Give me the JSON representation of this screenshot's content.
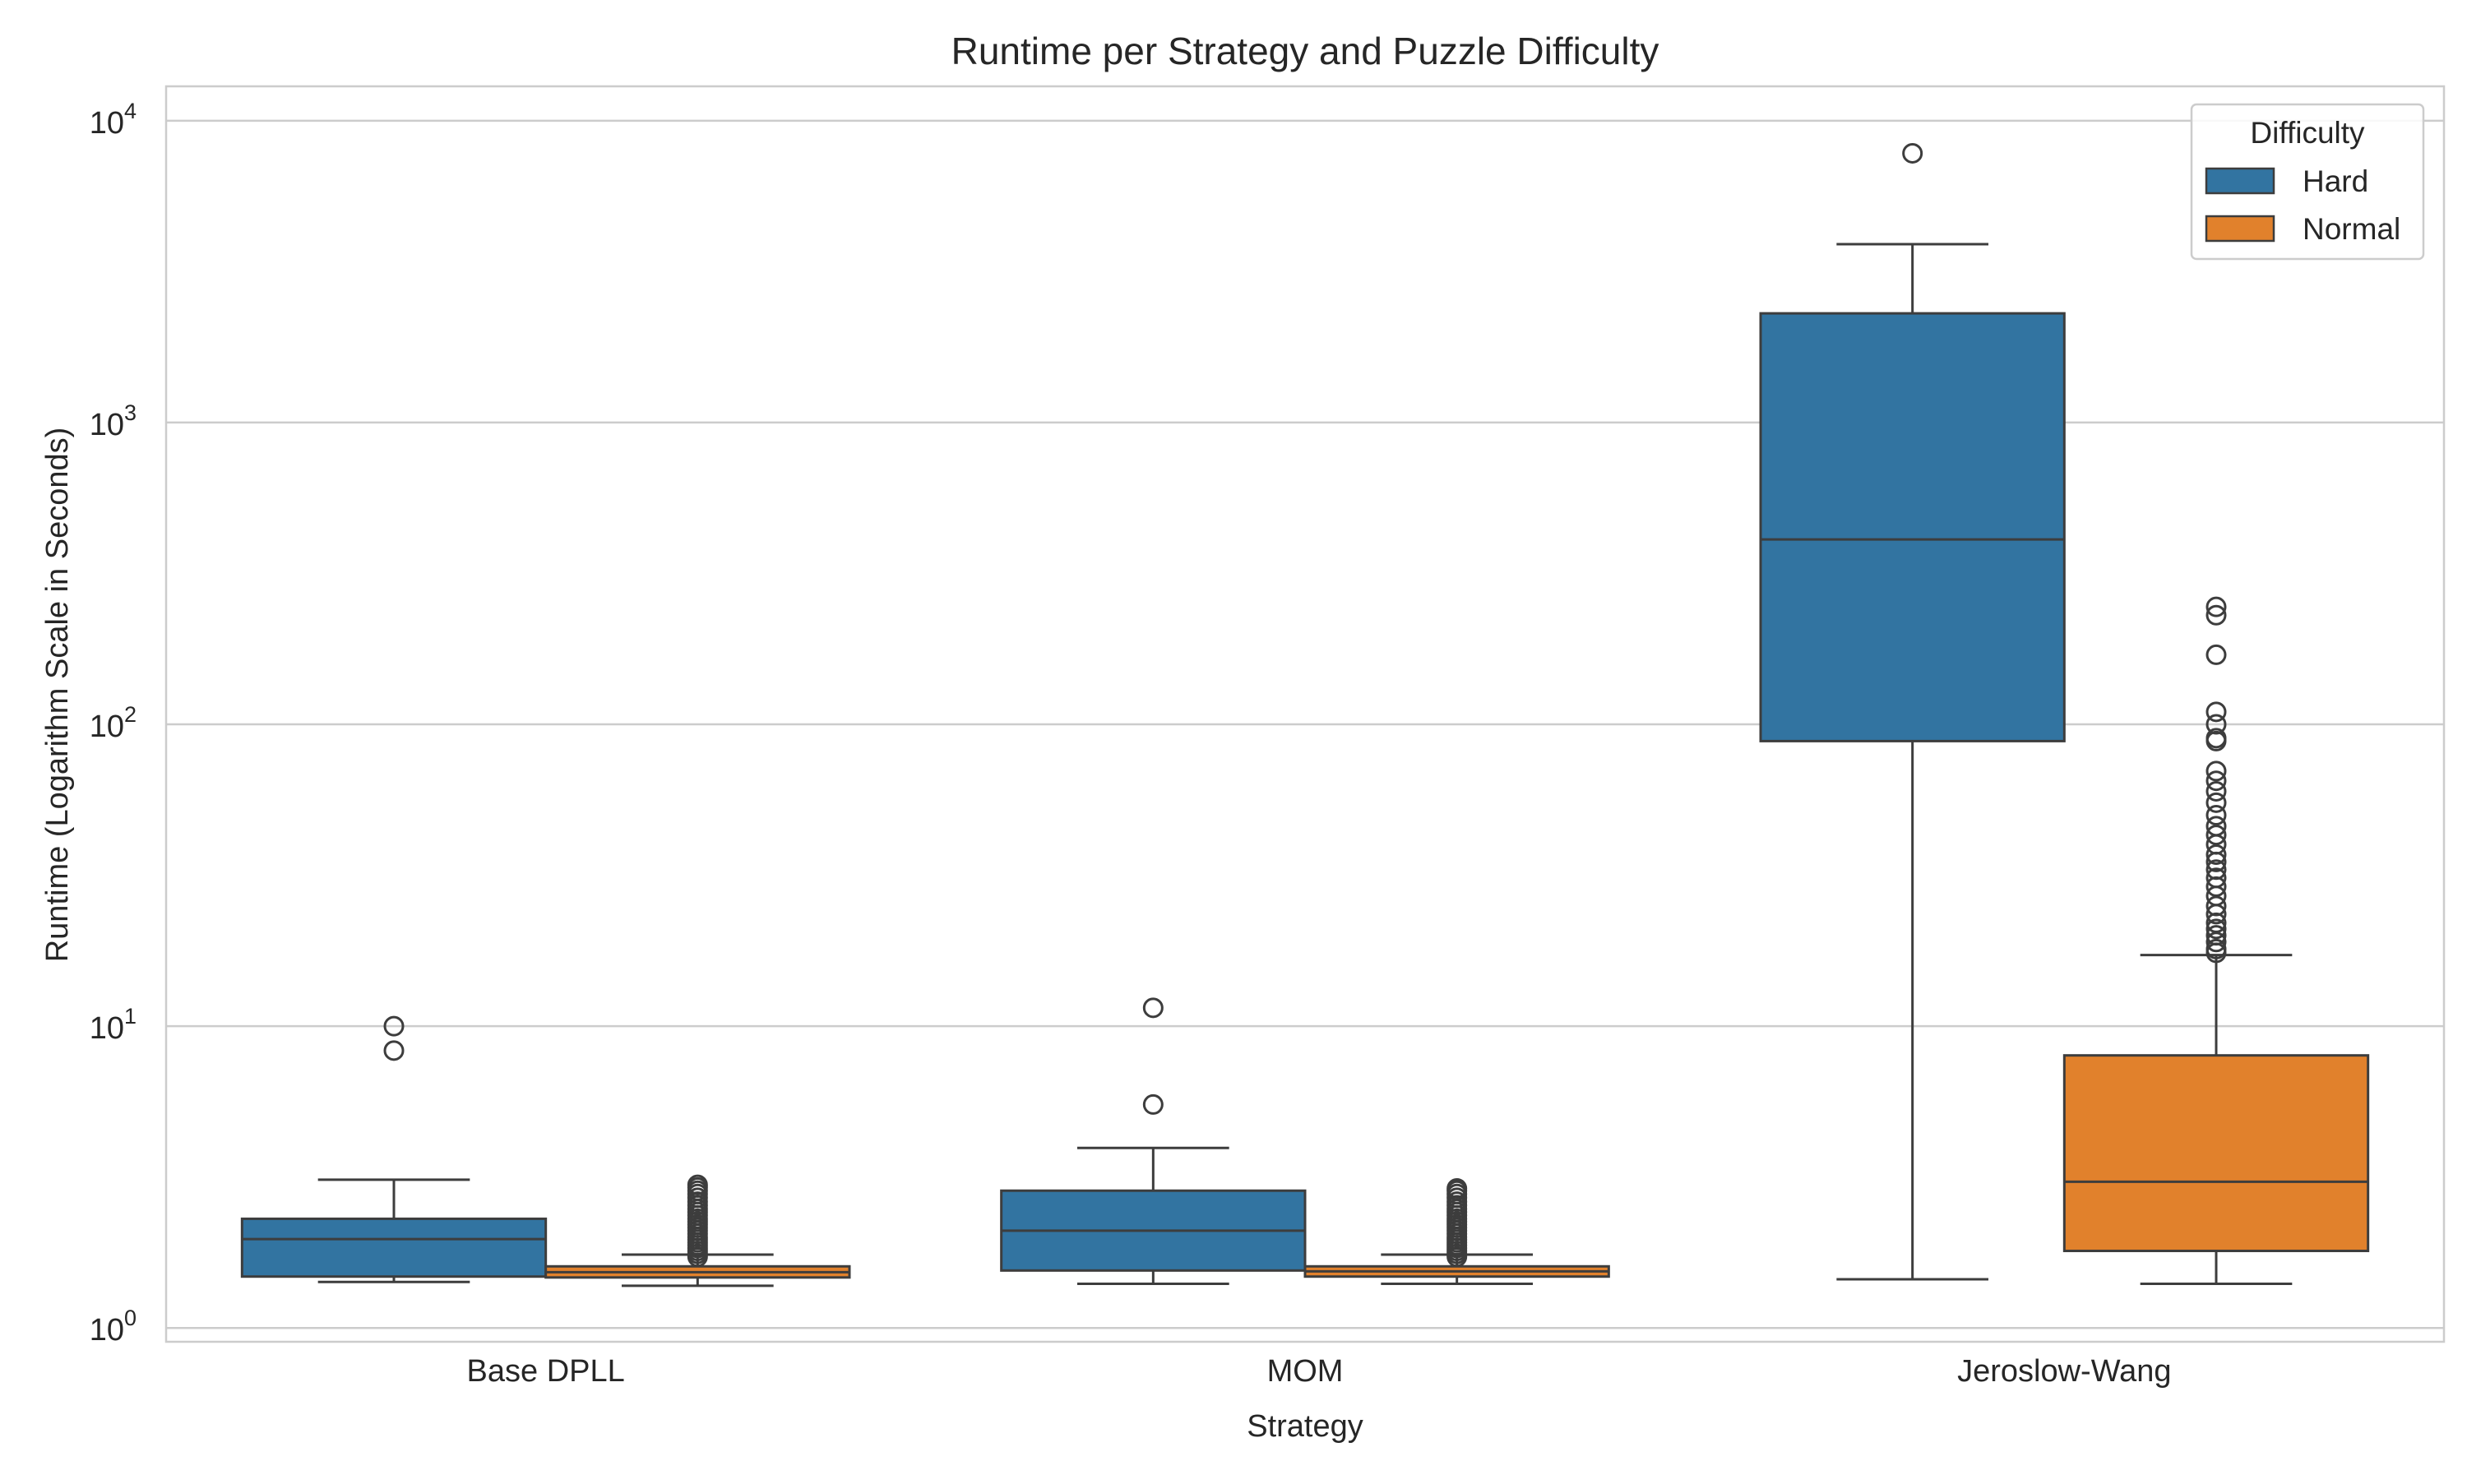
{
  "chart_data": {
    "type": "box",
    "title": "Runtime per Strategy and Puzzle Difficulty",
    "xlabel": "Strategy",
    "ylabel": "Runtime (Logarithm Scale in Seconds)",
    "yscale": "log",
    "ylim": [
      0.9,
      13000
    ],
    "yticks": [
      {
        "value": 1,
        "base": "10",
        "exp": "0"
      },
      {
        "value": 10,
        "base": "10",
        "exp": "1"
      },
      {
        "value": 100,
        "base": "10",
        "exp": "2"
      },
      {
        "value": 1000,
        "base": "10",
        "exp": "3"
      },
      {
        "value": 10000,
        "base": "10",
        "exp": "4"
      }
    ],
    "grid": true,
    "categories": [
      "Base DPLL",
      "MOM",
      "Jeroslow-Wang"
    ],
    "legend": {
      "title": "Difficulty",
      "position": "top-right"
    },
    "series": [
      {
        "name": "Hard",
        "color": "#3274a1",
        "boxes": [
          {
            "whislo": 1.42,
            "q1": 1.48,
            "med": 1.97,
            "q3": 2.3,
            "whishi": 3.1,
            "fliers": [
              8.3,
              10.0
            ]
          },
          {
            "whislo": 1.4,
            "q1": 1.55,
            "med": 2.1,
            "q3": 2.85,
            "whishi": 3.95,
            "fliers": [
              5.5,
              11.5
            ]
          },
          {
            "whislo": 1.45,
            "q1": 88,
            "med": 410,
            "q3": 2300,
            "whishi": 3900,
            "fliers": [
              7800
            ]
          }
        ]
      },
      {
        "name": "Normal",
        "color": "#e1812c",
        "boxes": [
          {
            "whislo": 1.38,
            "q1": 1.47,
            "med": 1.53,
            "q3": 1.6,
            "whishi": 1.75,
            "fliers": [
              1.72,
              1.76,
              1.8,
              1.84,
              1.88,
              1.92,
              1.96,
              2.0,
              2.05,
              2.1,
              2.15,
              2.2,
              2.25,
              2.3,
              2.36,
              2.42,
              2.48,
              2.55,
              2.62,
              2.7,
              2.78,
              2.85,
              2.92,
              2.98
            ]
          },
          {
            "whislo": 1.4,
            "q1": 1.48,
            "med": 1.54,
            "q3": 1.6,
            "whishi": 1.75,
            "fliers": [
              1.72,
              1.76,
              1.8,
              1.84,
              1.88,
              1.92,
              1.96,
              2.0,
              2.05,
              2.1,
              2.15,
              2.2,
              2.25,
              2.3,
              2.36,
              2.42,
              2.48,
              2.55,
              2.62,
              2.7,
              2.78,
              2.85,
              2.9
            ]
          },
          {
            "whislo": 1.4,
            "q1": 1.8,
            "med": 3.05,
            "q3": 8.0,
            "whishi": 17.2,
            "fliers": [
              17.5,
              18,
              19,
              20,
              21,
              22,
              23.5,
              25,
              27,
              29,
              31,
              33,
              35,
              37,
              40,
              43,
              46,
              50,
              55,
              60,
              65,
              70,
              88,
              90,
              100,
              110,
              170,
              230,
              245
            ]
          }
        ]
      }
    ]
  }
}
